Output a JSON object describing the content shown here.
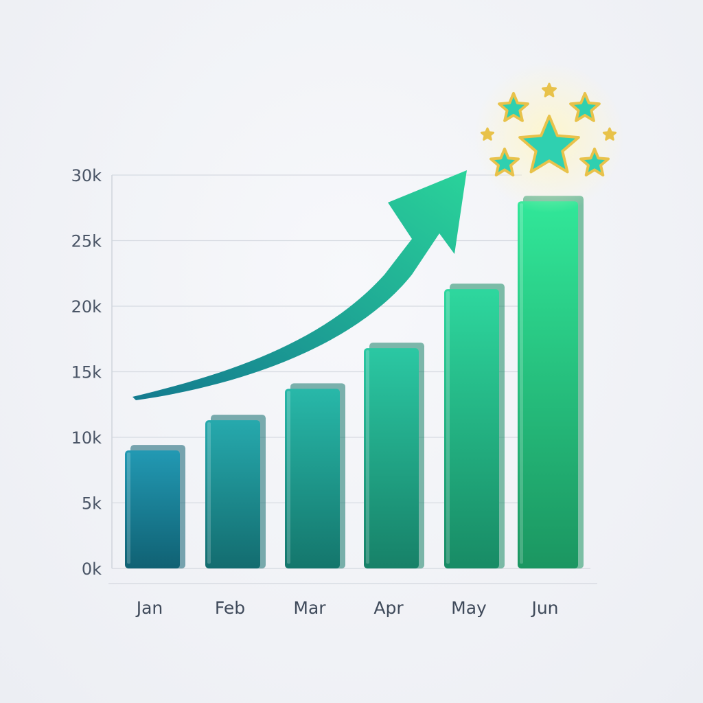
{
  "chart_data": {
    "type": "bar",
    "title": "",
    "xlabel": "",
    "ylabel": "",
    "categories": [
      "Jan",
      "Feb",
      "Mar",
      "Apr",
      "May",
      "Jun"
    ],
    "values": [
      9000,
      11300,
      13700,
      16800,
      21300,
      28000
    ],
    "ylim": [
      0,
      30000
    ],
    "y_ticks": [
      0,
      5000,
      10000,
      15000,
      20000,
      25000,
      30000
    ],
    "y_tick_labels": [
      "0k",
      "5k",
      "10k",
      "15k",
      "20k",
      "25k",
      "30k"
    ],
    "grid": true,
    "legend": "none",
    "decorations": [
      "upward-trend-arrow",
      "stars-icon"
    ],
    "colors": {
      "start": "#157c93",
      "end": "#22c07c",
      "star_gold": "#e8c24a",
      "star_fill": "#2fd0b0"
    }
  }
}
